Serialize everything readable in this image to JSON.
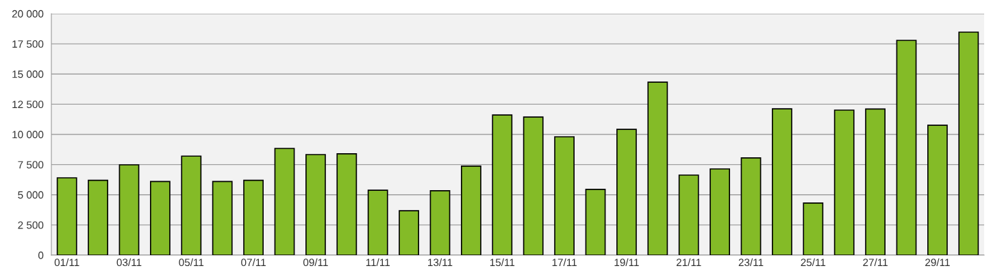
{
  "chart_data": {
    "type": "bar",
    "categories": [
      "01/11",
      null,
      "03/11",
      null,
      "05/11",
      null,
      "07/11",
      null,
      "09/11",
      null,
      "11/11",
      null,
      "13/11",
      null,
      "15/11",
      null,
      "17/11",
      null,
      "19/11",
      null,
      "21/11",
      null,
      "23/11",
      null,
      "25/11",
      null,
      "27/11",
      null,
      "29/11",
      null
    ],
    "values": [
      6400,
      6200,
      7480,
      6100,
      8200,
      6100,
      6200,
      8840,
      8330,
      8390,
      5380,
      3680,
      5330,
      7370,
      11610,
      11440,
      9800,
      5450,
      10420,
      14330,
      6630,
      7140,
      8050,
      12120,
      4310,
      12010,
      12100,
      17790,
      10760,
      18470
    ],
    "color": "#84bb27",
    "ylim": [
      0,
      20000
    ],
    "yticks": [
      0,
      {
        "value": 2500,
        "label": "2 500"
      },
      {
        "value": 5000,
        "label": "5 000"
      },
      {
        "value": 7500,
        "label": "7 500"
      },
      {
        "value": 10000,
        "label": "10 000"
      },
      {
        "value": 12500,
        "label": "12 500"
      },
      {
        "value": 15000,
        "label": "15 000"
      },
      {
        "value": 17500,
        "label": "17 500"
      },
      {
        "value": 20000,
        "label": "20 000"
      }
    ],
    "grid": "y",
    "legend": false
  }
}
